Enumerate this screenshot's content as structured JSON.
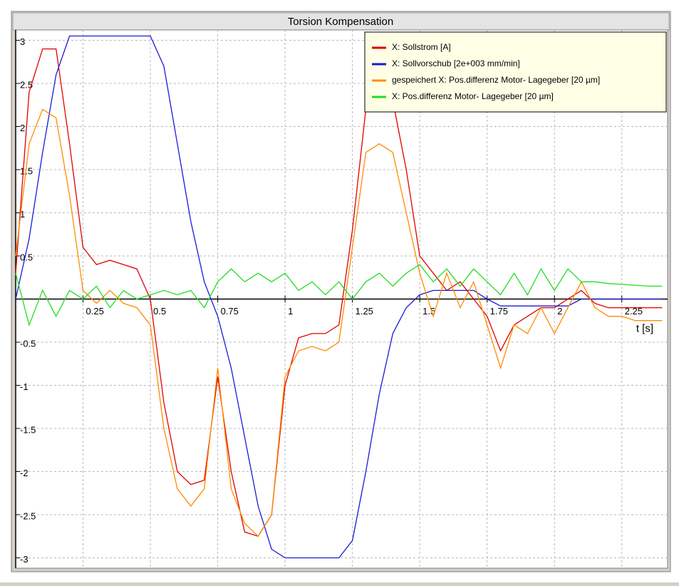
{
  "chart_data": {
    "type": "line",
    "title": "Torsion Kompensation",
    "x_label": "t [s]",
    "grid": true,
    "legend_position": "upper right",
    "xlim": [
      0,
      2.42
    ],
    "ylim": [
      -3.12,
      3.12
    ],
    "xticks": [
      0.25,
      0.5,
      0.75,
      1,
      1.25,
      1.5,
      1.75,
      2,
      2.25
    ],
    "yticks": [
      3,
      2.5,
      2,
      1.5,
      1,
      0.5,
      -0.5,
      -1,
      -1.5,
      -2,
      -2.5,
      -3
    ],
    "x": [
      0,
      0.05,
      0.1,
      0.15,
      0.2,
      0.25,
      0.3,
      0.35,
      0.4,
      0.45,
      0.5,
      0.55,
      0.6,
      0.65,
      0.7,
      0.75,
      0.8,
      0.85,
      0.9,
      0.95,
      1,
      1.05,
      1.1,
      1.15,
      1.2,
      1.25,
      1.3,
      1.35,
      1.4,
      1.45,
      1.5,
      1.55,
      1.6,
      1.65,
      1.7,
      1.75,
      1.8,
      1.85,
      1.9,
      1.95,
      2,
      2.05,
      2.1,
      2.15,
      2.2,
      2.25,
      2.3,
      2.35,
      2.4
    ],
    "series": [
      {
        "name": "X: Sollstrom [A]",
        "color": "#e00000",
        "values": [
          0.3,
          2.4,
          2.9,
          2.9,
          1.8,
          0.6,
          0.4,
          0.45,
          0.4,
          0.35,
          0.0,
          -1.2,
          -2.0,
          -2.15,
          -2.1,
          -0.9,
          -2.0,
          -2.7,
          -2.75,
          -2.5,
          -1.0,
          -0.45,
          -0.4,
          -0.4,
          -0.3,
          0.8,
          2.2,
          2.4,
          2.3,
          1.5,
          0.5,
          0.3,
          0.1,
          0.2,
          0.0,
          -0.2,
          -0.6,
          -0.3,
          -0.2,
          -0.1,
          -0.1,
          0.0,
          0.1,
          -0.05,
          -0.1,
          -0.1,
          -0.1,
          -0.1,
          -0.1
        ]
      },
      {
        "name": "X: Sollvorschub [2e+003 mm/min]",
        "color": "#1a1ad8",
        "values": [
          0.0,
          0.7,
          1.7,
          2.6,
          3.05,
          3.05,
          3.05,
          3.05,
          3.05,
          3.05,
          3.05,
          2.7,
          1.8,
          0.9,
          0.2,
          -0.2,
          -0.8,
          -1.6,
          -2.4,
          -2.9,
          -3.0,
          -3.0,
          -3.0,
          -3.0,
          -3.0,
          -2.8,
          -2.0,
          -1.1,
          -0.4,
          -0.1,
          0.05,
          0.1,
          0.1,
          0.1,
          0.1,
          0.0,
          -0.08,
          -0.08,
          -0.08,
          -0.08,
          -0.08,
          -0.08,
          0.0,
          0.0,
          0.0,
          0.0,
          0.0,
          0.0,
          0.0
        ]
      },
      {
        "name": "gespeichert X: Pos.differenz Motor- Lagegeber [20 µm]",
        "color": "#ff8c00",
        "values": [
          0.5,
          1.8,
          2.2,
          2.1,
          1.2,
          0.1,
          -0.05,
          0.1,
          -0.05,
          -0.1,
          -0.3,
          -1.5,
          -2.2,
          -2.4,
          -2.2,
          -0.8,
          -2.2,
          -2.6,
          -2.75,
          -2.5,
          -0.9,
          -0.6,
          -0.55,
          -0.6,
          -0.5,
          0.6,
          1.7,
          1.8,
          1.7,
          1.0,
          0.3,
          -0.2,
          0.3,
          -0.1,
          0.2,
          -0.3,
          -0.8,
          -0.3,
          -0.4,
          -0.1,
          -0.4,
          -0.1,
          0.2,
          -0.1,
          -0.2,
          -0.2,
          -0.25,
          -0.25,
          -0.25
        ]
      },
      {
        "name": "X: Pos.differenz Motor- Lagegeber [20 µm]",
        "color": "#22dd22",
        "values": [
          0.3,
          -0.3,
          0.1,
          -0.2,
          0.1,
          0.0,
          0.15,
          -0.1,
          0.1,
          0.0,
          0.05,
          0.1,
          0.05,
          0.1,
          -0.1,
          0.2,
          0.35,
          0.2,
          0.3,
          0.2,
          0.3,
          0.1,
          0.2,
          0.05,
          0.2,
          0.0,
          0.2,
          0.3,
          0.15,
          0.3,
          0.4,
          0.2,
          0.35,
          0.15,
          0.35,
          0.2,
          0.05,
          0.3,
          0.05,
          0.35,
          0.1,
          0.35,
          0.2,
          0.2,
          0.18,
          0.17,
          0.16,
          0.15,
          0.15
        ]
      }
    ]
  }
}
